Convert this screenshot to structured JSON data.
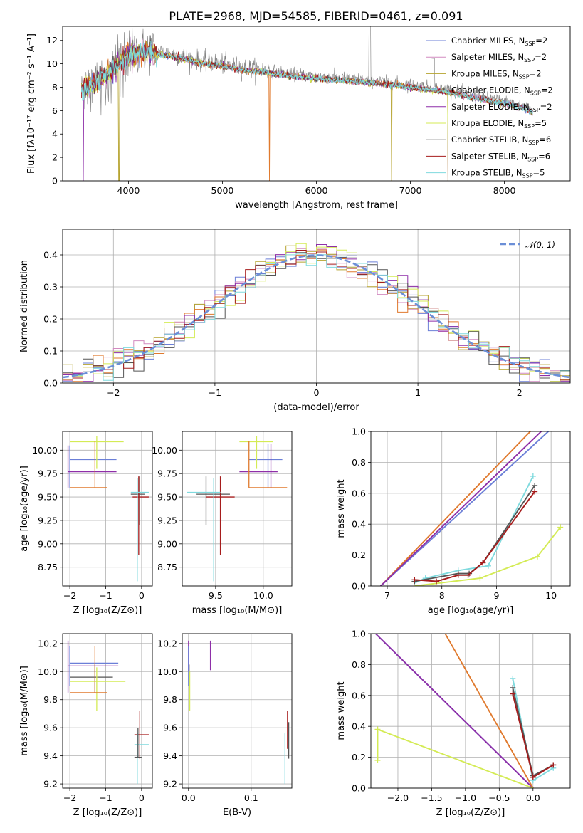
{
  "colors": {
    "chabrier_miles": "#6b7fd7",
    "salpeter_miles": "#d28ac0",
    "kroupa_miles": "#b5a22c",
    "chabrier_elodie": "#e07a2e",
    "salpeter_elodie": "#8e2fa8",
    "kroupa_elodie": "#d4eb55",
    "chabrier_stelib": "#555555",
    "salpeter_stelib": "#a61c1c",
    "kroupa_stelib": "#7fdade",
    "gauss": "#6b8fd7",
    "grid": "#b0b0b0"
  },
  "chart_data": [
    {
      "id": "spectrum",
      "type": "line",
      "title": "PLATE=2968, MJD=54585, FIBERID=0461, z=0.091",
      "xlabel": "wavelength [Angstrom, rest frame]",
      "ylabel": "Flux [fλ10⁻¹⁷ erg cm⁻² s⁻¹ A⁻¹]",
      "xlim": [
        3300,
        8700
      ],
      "ylim": [
        0,
        13.2
      ],
      "xticks": [
        4000,
        5000,
        6000,
        7000,
        8000
      ],
      "yticks": [
        0,
        2,
        4,
        6,
        8,
        10,
        12
      ],
      "grid": false,
      "legend_position": "top-right",
      "legend": [
        "Chabrier MILES, N_SSP=2",
        "Salpeter MILES, N_SSP=2",
        "Kroupa MILES, N_SSP=2",
        "Chabrier ELODIE, N_SSP=2",
        "Salpeter ELODIE, N_SSP=2",
        "Kroupa ELODIE, N_SSP=5",
        "Chabrier STELIB, N_SSP=6",
        "Salpeter STELIB, N_SSP=6",
        "Kroupa STELIB, N_SSP=5"
      ],
      "continuum_x": [
        3500,
        3700,
        3900,
        4000,
        4200,
        4400,
        4600,
        4800,
        5000,
        5200,
        5400,
        5600,
        5800,
        6000,
        6200,
        6400,
        6600,
        6800,
        7000,
        7200,
        7400,
        7600,
        7800,
        8000,
        8200,
        8300
      ],
      "continuum_y": [
        8.0,
        8.8,
        10.2,
        11.0,
        11.2,
        10.9,
        10.6,
        10.2,
        10.0,
        9.7,
        9.5,
        9.3,
        9.1,
        8.95,
        8.8,
        8.7,
        8.55,
        8.4,
        8.2,
        8.0,
        7.8,
        7.4,
        7.1,
        6.8,
        6.4,
        6.0
      ]
    },
    {
      "id": "residuals",
      "type": "line",
      "xlabel": "(data-model)/error",
      "ylabel": "Normed distribution",
      "xlim": [
        -2.5,
        2.5
      ],
      "ylim": [
        0,
        0.48
      ],
      "xticks": [
        -2,
        -1,
        0,
        1,
        2
      ],
      "yticks": [
        0.0,
        0.1,
        0.2,
        0.3,
        0.4
      ],
      "grid": true,
      "legend_position": "top-right",
      "legend": [
        "𝒩(0, 1)"
      ]
    },
    {
      "id": "age_vs_Z",
      "type": "scatter",
      "xlabel": "Z [log₁₀(Z/Z⊙)]",
      "ylabel": "age  [log₁₀(age/yr)]",
      "xlim": [
        -2.2,
        0.3
      ],
      "ylim": [
        8.55,
        10.2
      ],
      "xticks": [
        -2,
        -1,
        0
      ],
      "yticks": [
        8.75,
        9.0,
        9.25,
        9.5,
        9.75,
        10.0
      ],
      "grid": true,
      "points": [
        {
          "c": "chabrier_miles",
          "x": [
            -2.0,
            -0.7
          ],
          "y": [
            9.9,
            9.9
          ],
          "vx": -2.0,
          "vy": [
            9.6,
            10.05
          ]
        },
        {
          "c": "kroupa_elodie",
          "x": [
            -2.0,
            -0.5
          ],
          "y": [
            10.09,
            10.09
          ],
          "vx": -1.25,
          "vy": [
            9.8,
            10.15
          ]
        },
        {
          "c": "salpeter_elodie",
          "x": [
            -2.05,
            -0.7
          ],
          "y": [
            9.77,
            9.77
          ],
          "vx": -2.05,
          "vy": [
            9.6,
            10.05
          ]
        },
        {
          "c": "chabrier_elodie",
          "x": [
            -2.0,
            -0.95
          ],
          "y": [
            9.6,
            9.6
          ],
          "vx": -1.3,
          "vy": [
            9.6,
            10.1
          ]
        },
        {
          "c": "chabrier_stelib",
          "x": [
            -0.3,
            0.1
          ],
          "y": [
            9.53,
            9.53
          ],
          "vx": -0.05,
          "vy": [
            9.2,
            9.72
          ]
        },
        {
          "c": "salpeter_stelib",
          "x": [
            -0.25,
            0.2
          ],
          "y": [
            9.5,
            9.5
          ],
          "vx": -0.08,
          "vy": [
            8.88,
            9.72
          ]
        },
        {
          "c": "kroupa_stelib",
          "x": [
            -0.3,
            0.2
          ],
          "y": [
            9.55,
            9.55
          ],
          "vx": -0.12,
          "vy": [
            8.6,
            9.7
          ]
        }
      ]
    },
    {
      "id": "age_vs_mass",
      "type": "scatter",
      "xlabel": "mass [log₁₀(M/M⊙)]",
      "ylabel": "",
      "xlim": [
        9.15,
        10.3
      ],
      "ylim": [
        8.55,
        10.2
      ],
      "xticks": [
        9.5,
        10.0
      ],
      "yticks": [
        8.75,
        9.0,
        9.25,
        9.5,
        9.75,
        10.0
      ],
      "grid": true,
      "points": [
        {
          "c": "chabrier_miles",
          "x": [
            9.85,
            10.2
          ],
          "y": [
            9.9,
            9.9
          ],
          "vx": 10.05,
          "vy": [
            9.6,
            10.07
          ]
        },
        {
          "c": "kroupa_elodie",
          "x": [
            9.75,
            10.1
          ],
          "y": [
            10.09,
            10.09
          ],
          "vx": 9.93,
          "vy": [
            9.8,
            10.15
          ]
        },
        {
          "c": "salpeter_elodie",
          "x": [
            9.75,
            10.15
          ],
          "y": [
            9.77,
            9.77
          ],
          "vx": 10.08,
          "vy": [
            9.6,
            10.07
          ]
        },
        {
          "c": "chabrier_elodie",
          "x": [
            9.85,
            10.25
          ],
          "y": [
            9.6,
            9.6
          ],
          "vx": 9.85,
          "vy": [
            9.6,
            10.1
          ]
        },
        {
          "c": "chabrier_stelib",
          "x": [
            9.3,
            9.65
          ],
          "y": [
            9.53,
            9.53
          ],
          "vx": 9.4,
          "vy": [
            9.2,
            9.72
          ]
        },
        {
          "c": "salpeter_stelib",
          "x": [
            9.4,
            9.7
          ],
          "y": [
            9.5,
            9.5
          ],
          "vx": 9.55,
          "vy": [
            8.88,
            9.72
          ]
        },
        {
          "c": "kroupa_stelib",
          "x": [
            9.2,
            9.55
          ],
          "y": [
            9.55,
            9.55
          ],
          "vx": 9.48,
          "vy": [
            8.6,
            9.7
          ]
        }
      ]
    },
    {
      "id": "massweight_vs_age",
      "type": "line",
      "xlabel": "age  [log₁₀(age/yr)]",
      "ylabel": "mass weight",
      "xlim": [
        6.7,
        10.35
      ],
      "ylim": [
        0,
        1.0
      ],
      "xticks": [
        7,
        8,
        9,
        10
      ],
      "yticks": [
        0.0,
        0.2,
        0.4,
        0.6,
        0.8,
        1.0
      ],
      "grid": true,
      "series": [
        {
          "c": "chabrier_elodie",
          "x": [
            6.88,
            9.62
          ],
          "y": [
            0.0,
            1.0
          ]
        },
        {
          "c": "chabrier_miles",
          "x": [
            6.88,
            9.95
          ],
          "y": [
            0.0,
            1.0
          ]
        },
        {
          "c": "salpeter_elodie",
          "x": [
            6.88,
            9.82
          ],
          "y": [
            0.0,
            1.0
          ]
        },
        {
          "c": "kroupa_elodie",
          "x": [
            7.5,
            8.7,
            9.75,
            10.17
          ],
          "y": [
            0.0,
            0.05,
            0.19,
            0.38
          ]
        },
        {
          "c": "kroupa_stelib",
          "x": [
            7.5,
            7.7,
            8.3,
            8.85,
            9.67
          ],
          "y": [
            0.02,
            0.05,
            0.1,
            0.13,
            0.71
          ]
        },
        {
          "c": "chabrier_stelib",
          "x": [
            7.5,
            8.3,
            8.5,
            8.75,
            9.7
          ],
          "y": [
            0.03,
            0.08,
            0.08,
            0.15,
            0.65
          ]
        },
        {
          "c": "salpeter_stelib",
          "x": [
            7.5,
            7.9,
            8.3,
            8.48,
            8.75,
            9.7
          ],
          "y": [
            0.04,
            0.03,
            0.07,
            0.07,
            0.15,
            0.61
          ]
        }
      ]
    },
    {
      "id": "mass_vs_Z",
      "type": "scatter",
      "xlabel": "Z [log₁₀(Z/Z⊙)]",
      "ylabel": "mass [log₁₀(M/M⊙)]",
      "xlim": [
        -2.2,
        0.3
      ],
      "ylim": [
        9.17,
        10.27
      ],
      "xticks": [
        -2,
        -1,
        0
      ],
      "yticks": [
        9.2,
        9.4,
        9.6,
        9.8,
        10.0,
        10.2
      ],
      "grid": true,
      "points": [
        {
          "c": "chabrier_miles",
          "x": [
            -2.0,
            -0.65
          ],
          "y": [
            10.06,
            10.06
          ],
          "vx": -2.0,
          "vy": [
            9.9,
            10.18
          ]
        },
        {
          "c": "salpeter_elodie",
          "x": [
            -2.05,
            -0.65
          ],
          "y": [
            10.04,
            10.04
          ],
          "vx": -2.05,
          "vy": [
            9.85,
            10.22
          ]
        },
        {
          "c": "chabrier_stelib",
          "x": [
            -2.0,
            -0.8
          ],
          "y": [
            9.96,
            9.96
          ],
          "vx": -1.3,
          "vy": [
            9.85,
            10.05
          ]
        },
        {
          "c": "kroupa_elodie",
          "x": [
            -2.0,
            -0.45
          ],
          "y": [
            9.93,
            9.93
          ],
          "vx": -1.25,
          "vy": [
            9.72,
            10.03
          ]
        },
        {
          "c": "chabrier_elodie",
          "x": [
            -2.0,
            -0.95
          ],
          "y": [
            9.85,
            9.85
          ],
          "vx": -1.3,
          "vy": [
            9.85,
            10.18
          ]
        },
        {
          "c": "salpeter_stelib",
          "x": [
            -0.2,
            0.2
          ],
          "y": [
            9.55,
            9.55
          ],
          "vx": -0.05,
          "vy": [
            9.38,
            9.72
          ]
        },
        {
          "c": "kroupa_stelib",
          "x": [
            -0.2,
            0.2
          ],
          "y": [
            9.48,
            9.48
          ],
          "vx": -0.12,
          "vy": [
            9.2,
            9.56
          ]
        },
        {
          "c": "chabrier_stelib",
          "x": [
            -0.2,
            0.0
          ],
          "y": [
            9.39,
            9.39
          ],
          "vx": -0.1,
          "vy": [
            9.39,
            9.6
          ]
        }
      ]
    },
    {
      "id": "mass_vs_ebv",
      "type": "scatter",
      "xlabel": "E(B-V)",
      "ylabel": "",
      "xlim": [
        -0.01,
        0.165
      ],
      "ylim": [
        9.17,
        10.27
      ],
      "xticks": [
        0.0,
        0.1
      ],
      "yticks": [
        9.2,
        9.4,
        9.6,
        9.8,
        10.0,
        10.2
      ],
      "grid": true,
      "points": [
        {
          "c": "salpeter_elodie",
          "vx": 0.0,
          "vy": [
            10.0,
            10.22
          ]
        },
        {
          "c": "chabrier_stelib",
          "vx": 0.001,
          "vy": [
            9.88,
            10.05
          ]
        },
        {
          "c": "kroupa_elodie",
          "vx": 0.002,
          "vy": [
            9.72,
            10.0
          ]
        },
        {
          "c": "chabrier_miles",
          "vx": 0.0,
          "vy": [
            9.9,
            10.18
          ]
        },
        {
          "c": "salpeter_elodie",
          "vx": 0.035,
          "vy": [
            10.01,
            10.22
          ]
        },
        {
          "c": "salpeter_stelib",
          "vx": 0.158,
          "vy": [
            9.45,
            9.72
          ]
        },
        {
          "c": "chabrier_stelib",
          "vx": 0.16,
          "vy": [
            9.38,
            9.64
          ]
        },
        {
          "c": "kroupa_stelib",
          "vx": 0.154,
          "vy": [
            9.2,
            9.56
          ]
        }
      ]
    },
    {
      "id": "massweight_vs_Z",
      "type": "line",
      "xlabel": "Z [log₁₀(Z/Z⊙)]",
      "ylabel": "mass weight",
      "xlim": [
        -2.4,
        0.55
      ],
      "ylim": [
        0,
        1.0
      ],
      "xticks": [
        -2.0,
        -1.5,
        -1.0,
        -0.5,
        0.0
      ],
      "yticks": [
        0.0,
        0.2,
        0.4,
        0.6,
        0.8,
        1.0
      ],
      "grid": true,
      "series": [
        {
          "c": "chabrier_miles",
          "x": [
            -2.33,
            0.0
          ],
          "y": [
            1.0,
            0.0
          ]
        },
        {
          "c": "salpeter_elodie",
          "x": [
            -2.33,
            0.0
          ],
          "y": [
            1.0,
            0.0
          ]
        },
        {
          "c": "chabrier_elodie",
          "x": [
            -1.3,
            0.0
          ],
          "y": [
            1.0,
            0.0
          ]
        },
        {
          "c": "kroupa_elodie",
          "x": [
            -2.3,
            -2.3,
            -2.3,
            0.0
          ],
          "y": [
            0.18,
            0.38,
            0.38,
            0.0
          ]
        },
        {
          "c": "kroupa_stelib",
          "x": [
            -0.3,
            0.0,
            0.3
          ],
          "y": [
            0.71,
            0.05,
            0.13
          ]
        },
        {
          "c": "chabrier_stelib",
          "x": [
            -0.3,
            0.0,
            0.3
          ],
          "y": [
            0.65,
            0.08,
            0.15
          ]
        },
        {
          "c": "salpeter_stelib",
          "x": [
            -0.3,
            0.0,
            0.3
          ],
          "y": [
            0.61,
            0.07,
            0.15
          ]
        }
      ]
    }
  ]
}
